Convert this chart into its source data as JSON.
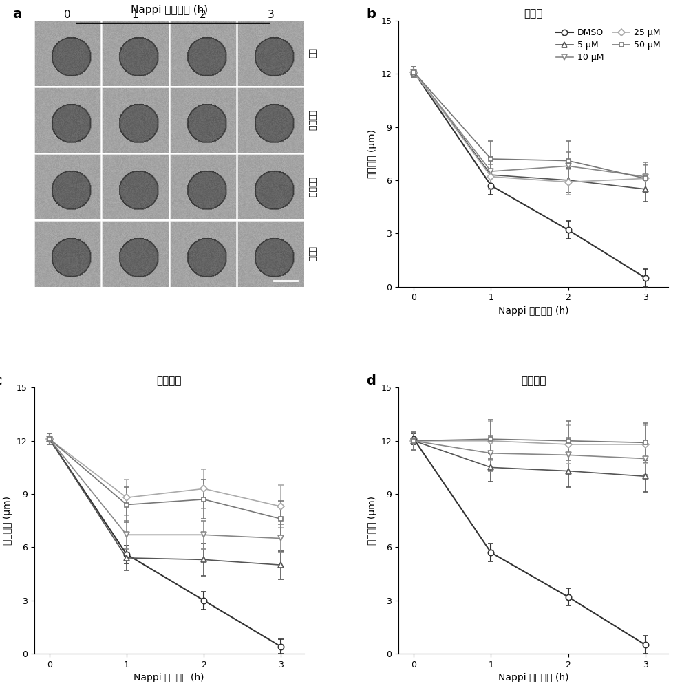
{
  "panel_a": {
    "title": "Nappi 处理时间 (h)",
    "col_labels": [
      "0",
      "1",
      "2",
      "3"
    ],
    "row_labels": [
      "对照",
      "卡巴他赛",
      "多西他赛",
      "紫杉醇"
    ]
  },
  "xlabel": "Nappi 处理时间 (h)",
  "ylabel": "纤毛长度 (μm)",
  "x_values": [
    0,
    1,
    2,
    3
  ],
  "panel_b": {
    "title": "紫杉醇",
    "series": {
      "DMSO": {
        "y": [
          12.1,
          5.7,
          3.2,
          0.5
        ],
        "yerr": [
          0.3,
          0.5,
          0.5,
          0.5
        ],
        "color": "#333333",
        "marker": "o",
        "lw": 1.5,
        "ms": 6
      },
      "5 μM": {
        "y": [
          12.1,
          6.3,
          6.0,
          5.5
        ],
        "yerr": [
          0.3,
          0.6,
          0.7,
          0.7
        ],
        "color": "#555555",
        "marker": "^",
        "lw": 1.2,
        "ms": 6
      },
      "10 μM": {
        "y": [
          12.1,
          6.5,
          6.8,
          6.2
        ],
        "yerr": [
          0.3,
          0.8,
          0.8,
          0.8
        ],
        "color": "#888888",
        "marker": "v",
        "lw": 1.2,
        "ms": 6
      },
      "25 μM": {
        "y": [
          12.1,
          6.2,
          5.9,
          6.1
        ],
        "yerr": [
          0.3,
          0.7,
          0.7,
          0.7
        ],
        "color": "#aaaaaa",
        "marker": "D",
        "lw": 1.2,
        "ms": 5
      },
      "50 μM": {
        "y": [
          12.1,
          7.2,
          7.1,
          6.1
        ],
        "yerr": [
          0.3,
          1.0,
          1.1,
          0.8
        ],
        "color": "#777777",
        "marker": "s",
        "lw": 1.2,
        "ms": 5
      }
    }
  },
  "panel_c": {
    "title": "多西他赛",
    "series": {
      "DMSO": {
        "y": [
          12.1,
          5.6,
          3.0,
          0.4
        ],
        "yerr": [
          0.3,
          0.5,
          0.5,
          0.4
        ],
        "color": "#333333",
        "marker": "o",
        "lw": 1.5,
        "ms": 6
      },
      "5 μM": {
        "y": [
          12.1,
          5.4,
          5.3,
          5.0
        ],
        "yerr": [
          0.3,
          0.7,
          0.9,
          0.8
        ],
        "color": "#555555",
        "marker": "^",
        "lw": 1.2,
        "ms": 6
      },
      "10 μM": {
        "y": [
          12.1,
          6.7,
          6.7,
          6.5
        ],
        "yerr": [
          0.3,
          0.8,
          0.8,
          0.8
        ],
        "color": "#888888",
        "marker": "v",
        "lw": 1.2,
        "ms": 6
      },
      "25 μM": {
        "y": [
          12.1,
          8.8,
          9.3,
          8.3
        ],
        "yerr": [
          0.3,
          1.0,
          1.1,
          1.2
        ],
        "color": "#aaaaaa",
        "marker": "D",
        "lw": 1.2,
        "ms": 5
      },
      "50 μM": {
        "y": [
          12.1,
          8.4,
          8.7,
          7.6
        ],
        "yerr": [
          0.3,
          1.0,
          1.1,
          1.0
        ],
        "color": "#777777",
        "marker": "s",
        "lw": 1.2,
        "ms": 5
      }
    }
  },
  "panel_d": {
    "title": "卡巴他赛",
    "series": {
      "DMSO": {
        "y": [
          12.1,
          5.7,
          3.2,
          0.5
        ],
        "yerr": [
          0.3,
          0.5,
          0.5,
          0.5
        ],
        "color": "#333333",
        "marker": "o",
        "lw": 1.5,
        "ms": 6
      },
      "5 μM": {
        "y": [
          12.0,
          10.5,
          10.3,
          10.0
        ],
        "yerr": [
          0.5,
          0.8,
          0.9,
          0.9
        ],
        "color": "#555555",
        "marker": "^",
        "lw": 1.2,
        "ms": 6
      },
      "10 μM": {
        "y": [
          12.0,
          11.3,
          11.2,
          11.0
        ],
        "yerr": [
          0.5,
          1.0,
          1.0,
          0.9
        ],
        "color": "#888888",
        "marker": "v",
        "lw": 1.2,
        "ms": 6
      },
      "25 μM": {
        "y": [
          12.0,
          12.0,
          11.8,
          11.8
        ],
        "yerr": [
          0.5,
          1.1,
          1.1,
          1.1
        ],
        "color": "#aaaaaa",
        "marker": "D",
        "lw": 1.2,
        "ms": 5
      },
      "50 μM": {
        "y": [
          12.0,
          12.1,
          12.0,
          11.9
        ],
        "yerr": [
          0.5,
          1.1,
          1.1,
          1.1
        ],
        "color": "#777777",
        "marker": "s",
        "lw": 1.2,
        "ms": 5
      }
    }
  },
  "ylim": [
    0,
    15
  ],
  "yticks": [
    0,
    3,
    6,
    9,
    12,
    15
  ],
  "xticks": [
    0,
    1,
    2,
    3
  ],
  "legend_order": [
    "DMSO",
    "5 μM",
    "10 μM",
    "25 μM",
    "50 μM"
  ]
}
